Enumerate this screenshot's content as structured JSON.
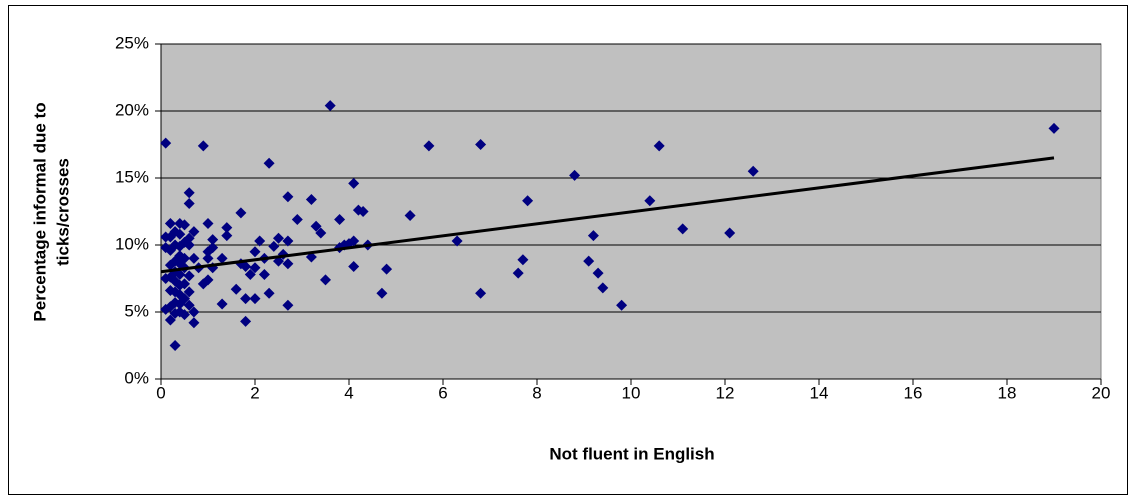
{
  "chart_data": {
    "type": "scatter",
    "xlabel": "Not fluent in English",
    "ylabel": [
      "Percentage informal due to",
      "ticks/crosses"
    ],
    "color": "#000080",
    "x": [
      0.1,
      0.9,
      2.3,
      3.6,
      5.7,
      6.8,
      8.8,
      10.6,
      12.6,
      19.0,
      10.4,
      7.8,
      4.1,
      3.2,
      2.7,
      1.7,
      4.2,
      4.3,
      5.3,
      2.9,
      3.3,
      3.4,
      3.8,
      11.1,
      12.1,
      9.2,
      6.3,
      4.1,
      4.0,
      3.9,
      3.8,
      4.4,
      7.7,
      9.1,
      9.3,
      7.6,
      9.4,
      9.8,
      6.8,
      4.7,
      4.8,
      4.1,
      3.5,
      3.2,
      2.7,
      2.6,
      2.5,
      2.7,
      2.5,
      2.4,
      2.2,
      2.2,
      2.3,
      2.7,
      2.1,
      2.0,
      2.0,
      2.0,
      1.9,
      1.8,
      1.8,
      1.7,
      1.6,
      1.8,
      1.4,
      1.4,
      1.3,
      1.3,
      1.1,
      1.1,
      1.1,
      1.0,
      1.0,
      1.0,
      1.0,
      0.9,
      0.8,
      0.7,
      0.6,
      0.6,
      0.7,
      0.6,
      0.6,
      0.5,
      0.5,
      0.6,
      0.5,
      0.6,
      0.5,
      0.6,
      0.7,
      0.7,
      0.5,
      0.4,
      0.4,
      0.4,
      0.4,
      0.4,
      0.4,
      0.4,
      0.4,
      0.4,
      0.4,
      0.3,
      0.3,
      0.3,
      0.3,
      0.3,
      0.3,
      0.3,
      0.3,
      0.3,
      0.2,
      0.2,
      0.2,
      0.2,
      0.2,
      0.2,
      0.2,
      0.2,
      0.1,
      0.1,
      0.1,
      0.1,
      0.5,
      0.5
    ],
    "values": [
      17.6,
      17.4,
      16.1,
      20.4,
      17.4,
      17.5,
      15.2,
      17.4,
      15.5,
      18.7,
      13.3,
      13.3,
      14.6,
      13.4,
      13.6,
      12.4,
      12.6,
      12.5,
      12.2,
      11.9,
      11.4,
      10.9,
      11.9,
      11.2,
      10.9,
      10.7,
      10.3,
      10.3,
      10.1,
      10.0,
      9.8,
      10.0,
      8.9,
      8.8,
      7.9,
      7.9,
      6.8,
      5.5,
      6.4,
      6.4,
      8.2,
      8.4,
      7.4,
      9.1,
      10.3,
      9.3,
      8.8,
      8.6,
      10.5,
      9.9,
      9.0,
      7.8,
      6.4,
      5.5,
      10.3,
      9.5,
      8.3,
      6.0,
      7.8,
      6.0,
      4.3,
      8.6,
      6.7,
      8.4,
      11.3,
      10.7,
      9.0,
      5.6,
      10.4,
      9.8,
      8.3,
      11.6,
      9.5,
      9.0,
      7.4,
      7.1,
      8.3,
      9.0,
      13.9,
      13.1,
      11.0,
      10.5,
      10.0,
      9.0,
      8.3,
      7.7,
      7.1,
      6.5,
      6.0,
      5.5,
      5.0,
      4.2,
      4.8,
      11.6,
      10.8,
      9.9,
      9.2,
      8.6,
      7.8,
      7.0,
      6.3,
      5.6,
      5.0,
      11.0,
      10.0,
      8.8,
      8.0,
      7.3,
      6.5,
      5.7,
      4.9,
      2.5,
      11.6,
      10.6,
      9.6,
      8.5,
      7.6,
      6.6,
      5.4,
      4.4,
      10.6,
      9.8,
      7.5,
      5.2,
      11.5,
      10.2
    ],
    "trend_line": {
      "x": [
        0,
        19
      ],
      "values": [
        8.0,
        16.5
      ],
      "color": "#000000"
    },
    "xlim": [
      0,
      20
    ],
    "xticks": [
      0,
      2,
      4,
      6,
      8,
      10,
      12,
      14,
      16,
      18,
      20
    ],
    "ylim": [
      0,
      25
    ],
    "yticks": [
      {
        "value": 0,
        "label": "0%"
      },
      {
        "value": 5,
        "label": "5%"
      },
      {
        "value": 10,
        "label": "10%"
      },
      {
        "value": 15,
        "label": "15%"
      },
      {
        "value": 20,
        "label": "20%"
      },
      {
        "value": 25,
        "label": "25%"
      }
    ],
    "grid": true,
    "plot_background": "#c0c0c0"
  }
}
